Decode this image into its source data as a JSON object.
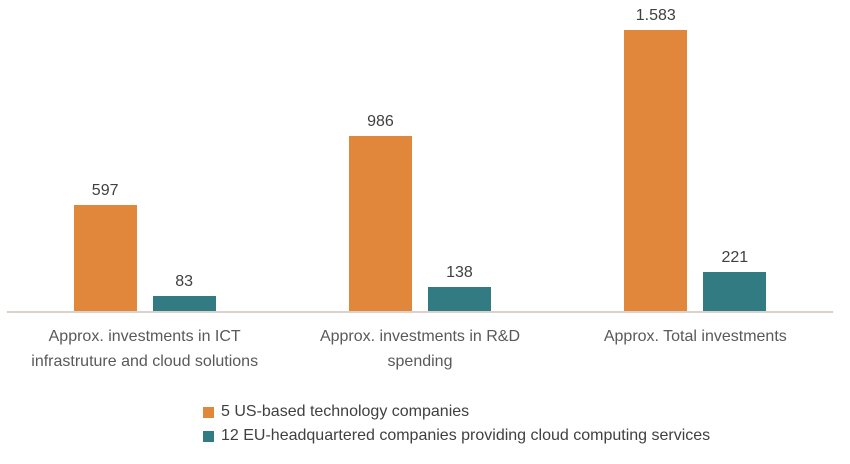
{
  "chart_data": {
    "type": "bar",
    "title": "",
    "categories": [
      "Approx. investments in ICT\ninfrastruture and cloud solutions",
      "Approx. investments in R&D\nspending",
      "Approx. Total investments"
    ],
    "series": [
      {
        "name": "5 US-based technology companies",
        "color": "#E0873C",
        "values": [
          597,
          986,
          1583
        ],
        "value_labels": [
          "597",
          "986",
          "1.583"
        ]
      },
      {
        "name": "12 EU-headquartered companies providing cloud computing services",
        "color": "#337B82",
        "values": [
          83,
          138,
          221
        ],
        "value_labels": [
          "83",
          "138",
          "221"
        ]
      }
    ],
    "ylim": [
      0,
      1650
    ],
    "grid": false,
    "y_axis_visible": false,
    "x_axis_line_color": "#D9D1CA",
    "value_labels_position": "above-bars",
    "value_label_color": "#404040",
    "category_label_color": "#595959",
    "legend_position": "bottom-left",
    "background": "#FFFFFF"
  }
}
